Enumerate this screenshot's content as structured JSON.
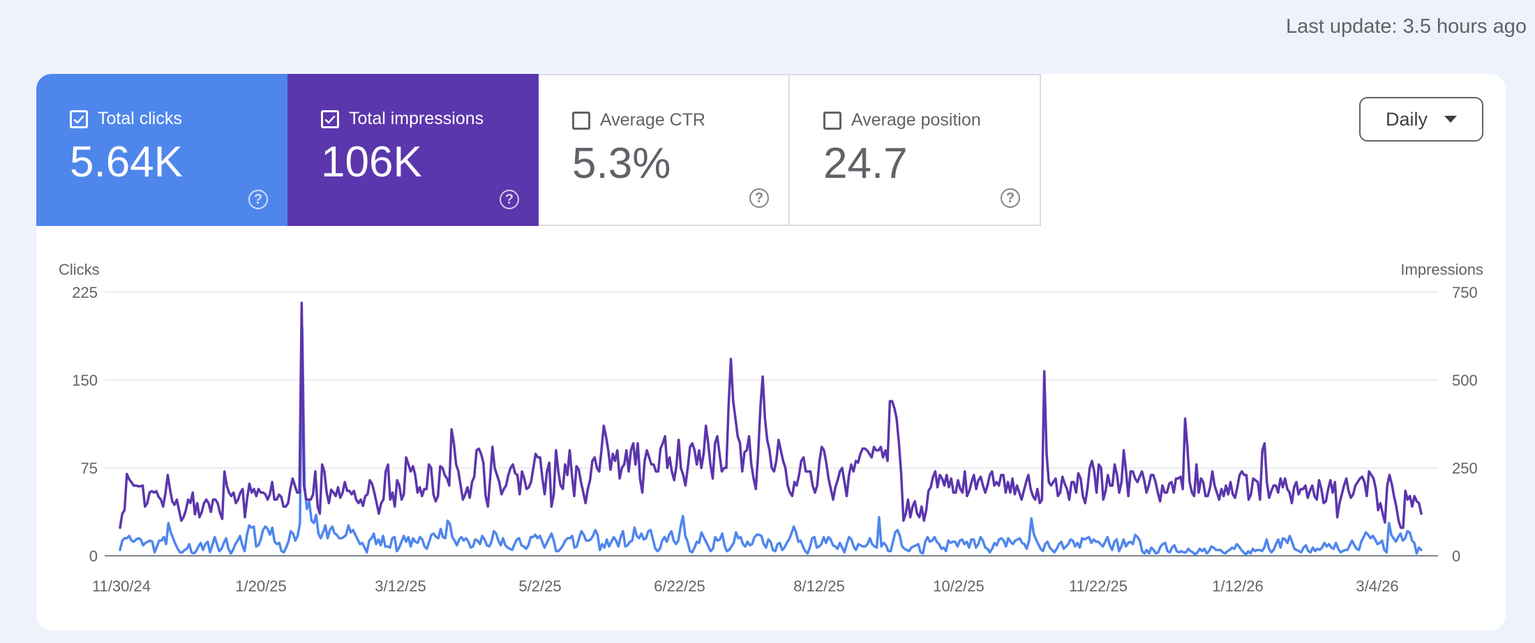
{
  "header": {
    "last_update": "Last update: 3.5 hours ago"
  },
  "metrics": [
    {
      "label": "Total clicks",
      "value": "5.64K",
      "checked": true,
      "color": "#4f86ec"
    },
    {
      "label": "Total impressions",
      "value": "106K",
      "checked": true,
      "color": "#5b36ac"
    },
    {
      "label": "Average CTR",
      "value": "5.3%",
      "checked": false
    },
    {
      "label": "Average position",
      "value": "24.7",
      "checked": false
    }
  ],
  "period_select": {
    "label": "Daily"
  },
  "icons": {
    "help": "help-circle-icon",
    "checkbox": "checkbox-icon",
    "dropdown": "caret-down-icon"
  },
  "chart_data": {
    "type": "line",
    "y_left_label": "Clicks",
    "y_right_label": "Impressions",
    "y_left_ticks": [
      "225",
      "150",
      "75",
      "0"
    ],
    "y_right_ticks": [
      "750",
      "500",
      "250",
      "0"
    ],
    "y_left_range": [
      0,
      225
    ],
    "y_right_range": [
      0,
      750
    ],
    "x_ticks": [
      "11/30/24",
      "1/20/25",
      "3/12/25",
      "5/2/25",
      "6/22/25",
      "8/12/25",
      "10/2/25",
      "11/22/25",
      "1/12/26",
      "3/4/26"
    ],
    "grid": true,
    "series": [
      {
        "name": "Total clicks",
        "axis": "left",
        "color": "#4f86ec",
        "values": [
          5,
          13,
          15,
          15,
          17,
          13,
          12,
          14,
          15,
          14,
          9,
          11,
          12,
          13,
          12,
          3,
          8,
          13,
          13,
          16,
          10,
          28,
          20,
          15,
          10,
          6,
          3,
          3,
          5,
          6,
          10,
          3,
          2,
          4,
          8,
          11,
          5,
          10,
          12,
          3,
          9,
          16,
          10,
          4,
          6,
          11,
          15,
          6,
          2,
          5,
          10,
          13,
          17,
          9,
          4,
          18,
          26,
          24,
          25,
          8,
          9,
          14,
          22,
          25,
          23,
          18,
          24,
          12,
          10,
          11,
          4,
          3,
          7,
          12,
          21,
          19,
          13,
          17,
          28,
          195,
          60,
          40,
          46,
          30,
          28,
          35,
          19,
          15,
          20,
          26,
          15,
          22,
          25,
          19,
          18,
          15,
          15,
          16,
          18,
          26,
          20,
          22,
          18,
          14,
          10,
          11,
          7,
          3,
          13,
          15,
          19,
          10,
          14,
          9,
          17,
          8,
          8,
          7,
          15,
          16,
          4,
          7,
          12,
          17,
          12,
          16,
          8,
          15,
          12,
          11,
          16,
          14,
          8,
          6,
          12,
          18,
          19,
          16,
          15,
          23,
          16,
          15,
          30,
          27,
          16,
          13,
          9,
          14,
          16,
          13,
          15,
          12,
          7,
          8,
          14,
          13,
          10,
          17,
          14,
          9,
          8,
          12,
          21,
          19,
          13,
          9,
          15,
          9,
          7,
          6,
          5,
          10,
          14,
          15,
          9,
          8,
          6,
          9,
          16,
          16,
          18,
          15,
          17,
          12,
          7,
          11,
          15,
          19,
          13,
          4,
          4,
          6,
          9,
          13,
          15,
          15,
          17,
          7,
          8,
          15,
          21,
          18,
          13,
          13,
          14,
          17,
          22,
          18,
          5,
          10,
          7,
          14,
          8,
          12,
          16,
          13,
          8,
          16,
          21,
          8,
          9,
          12,
          13,
          24,
          17,
          15,
          19,
          14,
          15,
          21,
          22,
          14,
          6,
          4,
          6,
          13,
          16,
          12,
          18,
          21,
          13,
          10,
          13,
          25,
          34,
          17,
          12,
          4,
          3,
          7,
          12,
          11,
          20,
          16,
          12,
          8,
          4,
          6,
          16,
          13,
          14,
          19,
          9,
          4,
          5,
          8,
          11,
          20,
          15,
          16,
          10,
          8,
          12,
          9,
          10,
          16,
          18,
          18,
          17,
          10,
          7,
          14,
          12,
          5,
          4,
          10,
          11,
          5,
          7,
          11,
          14,
          19,
          25,
          20,
          12,
          13,
          8,
          4,
          2,
          7,
          15,
          16,
          7,
          8,
          10,
          16,
          11,
          16,
          14,
          9,
          8,
          6,
          11,
          7,
          3,
          10,
          16,
          14,
          8,
          5,
          10,
          9,
          8,
          8,
          10,
          15,
          10,
          8,
          7,
          33,
          8,
          11,
          9,
          4,
          4,
          12,
          20,
          22,
          17,
          8,
          6,
          5,
          4,
          7,
          8,
          9,
          10,
          3,
          2,
          12,
          16,
          12,
          13,
          16,
          12,
          10,
          6,
          7,
          4,
          13,
          11,
          12,
          12,
          8,
          13,
          14,
          10,
          12,
          7,
          14,
          14,
          7,
          10,
          16,
          13,
          7,
          6,
          3,
          6,
          11,
          9,
          14,
          15,
          13,
          8,
          15,
          12,
          10,
          13,
          14,
          15,
          11,
          10,
          6,
          13,
          32,
          19,
          14,
          10,
          6,
          4,
          10,
          12,
          7,
          5,
          3,
          6,
          10,
          12,
          6,
          8,
          10,
          14,
          13,
          8,
          11,
          7,
          15,
          14,
          15,
          16,
          11,
          14,
          12,
          12,
          10,
          8,
          12,
          16,
          9,
          5,
          12,
          14,
          4,
          8,
          14,
          8,
          11,
          12,
          10,
          18,
          16,
          13,
          4,
          2,
          5,
          2,
          7,
          5,
          2,
          3,
          8,
          10,
          11,
          4,
          3,
          7,
          9,
          4,
          3,
          4,
          3,
          3,
          6,
          4,
          3,
          1,
          3,
          6,
          4,
          6,
          2,
          4,
          8,
          7,
          5,
          5,
          5,
          3,
          2,
          4,
          5,
          7,
          6,
          10,
          8,
          5,
          3,
          1,
          4,
          2,
          6,
          4,
          5,
          5,
          4,
          7,
          14,
          6,
          3,
          5,
          10,
          14,
          7,
          15,
          14,
          11,
          17,
          12,
          6,
          5,
          4,
          3,
          7,
          9,
          4,
          3,
          7,
          4,
          6,
          5,
          7,
          11,
          8,
          10,
          7,
          6,
          11,
          6,
          3,
          4,
          5,
          5,
          9,
          13,
          9,
          6,
          5,
          12,
          16,
          20,
          18,
          15,
          17,
          14,
          10,
          11,
          13,
          5,
          3,
          28,
          18,
          15,
          12,
          16,
          19,
          13,
          15,
          21,
          20,
          13,
          11,
          2,
          7,
          5
        ]
      },
      {
        "name": "Total impressions",
        "axis": "right",
        "color": "#5b36ac",
        "values": [
          80,
          120,
          130,
          233,
          218,
          210,
          200,
          200,
          198,
          198,
          200,
          140,
          150,
          180,
          184,
          180,
          184,
          168,
          160,
          140,
          178,
          230,
          190,
          155,
          145,
          160,
          130,
          100,
          110,
          130,
          160,
          150,
          180,
          118,
          150,
          110,
          125,
          150,
          160,
          150,
          125,
          160,
          160,
          150,
          123,
          105,
          240,
          200,
          180,
          170,
          180,
          150,
          160,
          180,
          190,
          110,
          165,
          205,
          180,
          190,
          170,
          190,
          180,
          180,
          175,
          160,
          175,
          210,
          160,
          160,
          174,
          168,
          140,
          140,
          150,
          190,
          220,
          200,
          180,
          180,
          720,
          200,
          160,
          160,
          160,
          175,
          240,
          140,
          120,
          260,
          240,
          180,
          150,
          188,
          180,
          170,
          195,
          165,
          180,
          210,
          185,
          185,
          175,
          185,
          160,
          150,
          160,
          142,
          170,
          175,
          215,
          205,
          180,
          150,
          120,
          150,
          160,
          240,
          260,
          160,
          180,
          140,
          215,
          200,
          160,
          175,
          280,
          260,
          240,
          255,
          230,
          180,
          195,
          170,
          190,
          190,
          260,
          250,
          175,
          155,
          170,
          255,
          250,
          230,
          220,
          200,
          360,
          320,
          260,
          240,
          200,
          160,
          175,
          195,
          165,
          210,
          225,
          300,
          305,
          290,
          265,
          170,
          140,
          220,
          310,
          250,
          230,
          210,
          175,
          190,
          200,
          230,
          250,
          260,
          235,
          230,
          175,
          240,
          220,
          190,
          195,
          210,
          250,
          290,
          280,
          280,
          220,
          175,
          240,
          265,
          140,
          175,
          300,
          240,
          200,
          190,
          260,
          230,
          300,
          230,
          170,
          255,
          245,
          210,
          180,
          150,
          190,
          215,
          270,
          280,
          250,
          240,
          300,
          370,
          340,
          300,
          245,
          290,
          270,
          300,
          220,
          250,
          260,
          300,
          240,
          300,
          320,
          260,
          320,
          220,
          180,
          270,
          300,
          280,
          260,
          260,
          240,
          240,
          305,
          320,
          340,
          250,
          280,
          240,
          215,
          255,
          330,
          250,
          230,
          200,
          250,
          310,
          320,
          300,
          260,
          300,
          250,
          290,
          370,
          320,
          260,
          220,
          320,
          340,
          290,
          240,
          250,
          250,
          430,
          560,
          440,
          390,
          340,
          320,
          240,
          295,
          300,
          340,
          260,
          220,
          190,
          290,
          425,
          510,
          390,
          330,
          300,
          250,
          240,
          270,
          330,
          300,
          270,
          250,
          200,
          180,
          170,
          210,
          200,
          230,
          270,
          280,
          240,
          240,
          240,
          200,
          180,
          200,
          270,
          310,
          300,
          265,
          220,
          190,
          160,
          195,
          215,
          240,
          250,
          210,
          170,
          230,
          260,
          240,
          270,
          265,
          290,
          305,
          305,
          300,
          290,
          280,
          310,
          300,
          300,
          310,
          280,
          300,
          270,
          440,
          440,
          420,
          390,
          320,
          230,
          100,
          120,
          160,
          110,
          140,
          155,
          120,
          110,
          140,
          100,
          130,
          185,
          195,
          225,
          240,
          195,
          230,
          220,
          200,
          230,
          195,
          220,
          180,
          180,
          215,
          190,
          180,
          240,
          170,
          185,
          210,
          230,
          190,
          215,
          225,
          200,
          180,
          200,
          230,
          240,
          200,
          210,
          200,
          230,
          230,
          180,
          210,
          180,
          220,
          175,
          200,
          180,
          160,
          185,
          210,
          230,
          190,
          170,
          160,
          190,
          150,
          160,
          525,
          290,
          210,
          200,
          210,
          220,
          170,
          180,
          225,
          205,
          190,
          160,
          210,
          210,
          180,
          235,
          220,
          170,
          150,
          190,
          250,
          270,
          240,
          180,
          260,
          250,
          160,
          185,
          230,
          200,
          200,
          260,
          230,
          180,
          210,
          300,
          240,
          170,
          240,
          240,
          220,
          210,
          225,
          240,
          215,
          180,
          200,
          230,
          230,
          210,
          180,
          155,
          200,
          180,
          180,
          205,
          210,
          180,
          220,
          220,
          225,
          190,
          390,
          310,
          210,
          180,
          170,
          260,
          180,
          220,
          210,
          170,
          170,
          195,
          240,
          200,
          180,
          160,
          190,
          170,
          200,
          175,
          210,
          175,
          165,
          195,
          230,
          240,
          230,
          230,
          160,
          175,
          220,
          215,
          210,
          160,
          300,
          320,
          210,
          165,
          185,
          200,
          200,
          180,
          220,
          195,
          220,
          190,
          180,
          150,
          195,
          210,
          175,
          190,
          190,
          200,
          165,
          185,
          200,
          170,
          160,
          215,
          190,
          150,
          155,
          190,
          215,
          180,
          210,
          110,
          150,
          175,
          200,
          220,
          185,
          165,
          175,
          200,
          210,
          220,
          225,
          210,
          170,
          240,
          230,
          220,
          190,
          130,
          150,
          120,
          95,
          200,
          230,
          205,
          170,
          140,
          100,
          80,
          80,
          185,
          160,
          170,
          140,
          170,
          155,
          150,
          120
        ]
      }
    ]
  }
}
